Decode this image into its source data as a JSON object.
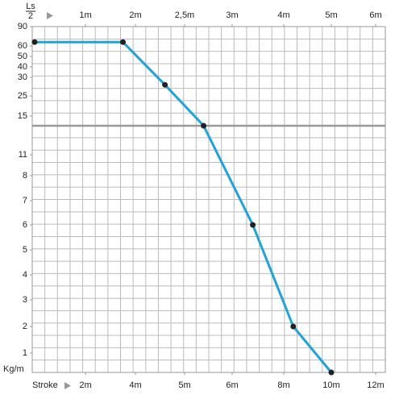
{
  "chart_data": {
    "type": "line",
    "x2label_top": "Ls",
    "x2label_bottom": "2",
    "xlabel": "Stroke",
    "ylabel": "Kg/m",
    "x": [
      0,
      3.5,
      4.6,
      5.4,
      6.8,
      8.4,
      10
    ],
    "series": [
      {
        "color": "#1ba4e0",
        "values": [
          66,
          66,
          28,
          14,
          6,
          2,
          0
        ]
      }
    ],
    "xlim": [
      0,
      12
    ],
    "xticks": [
      {
        "value": 2,
        "label": "2m"
      },
      {
        "value": 4,
        "label": "4m"
      },
      {
        "value": 5,
        "label": "5m"
      },
      {
        "value": 6,
        "label": "6m"
      },
      {
        "value": 8,
        "label": "8m"
      },
      {
        "value": 10,
        "label": "10m"
      },
      {
        "value": 12,
        "label": "12m"
      }
    ],
    "x2lim": [
      0,
      6
    ],
    "x2ticks": [
      {
        "value": 1,
        "label": "1m"
      },
      {
        "value": 2,
        "label": "2m"
      },
      {
        "value": 2.5,
        "label": "2,5m"
      },
      {
        "value": 3,
        "label": "3m"
      },
      {
        "value": 4,
        "label": "4m"
      },
      {
        "value": 5,
        "label": "5m"
      },
      {
        "value": 6,
        "label": "6m"
      }
    ],
    "ylim": [
      0,
      90
    ],
    "yticks": [
      90,
      60,
      50,
      40,
      30,
      25,
      15,
      11,
      8,
      7,
      6,
      5,
      4,
      3,
      2,
      1
    ],
    "grid": true
  }
}
